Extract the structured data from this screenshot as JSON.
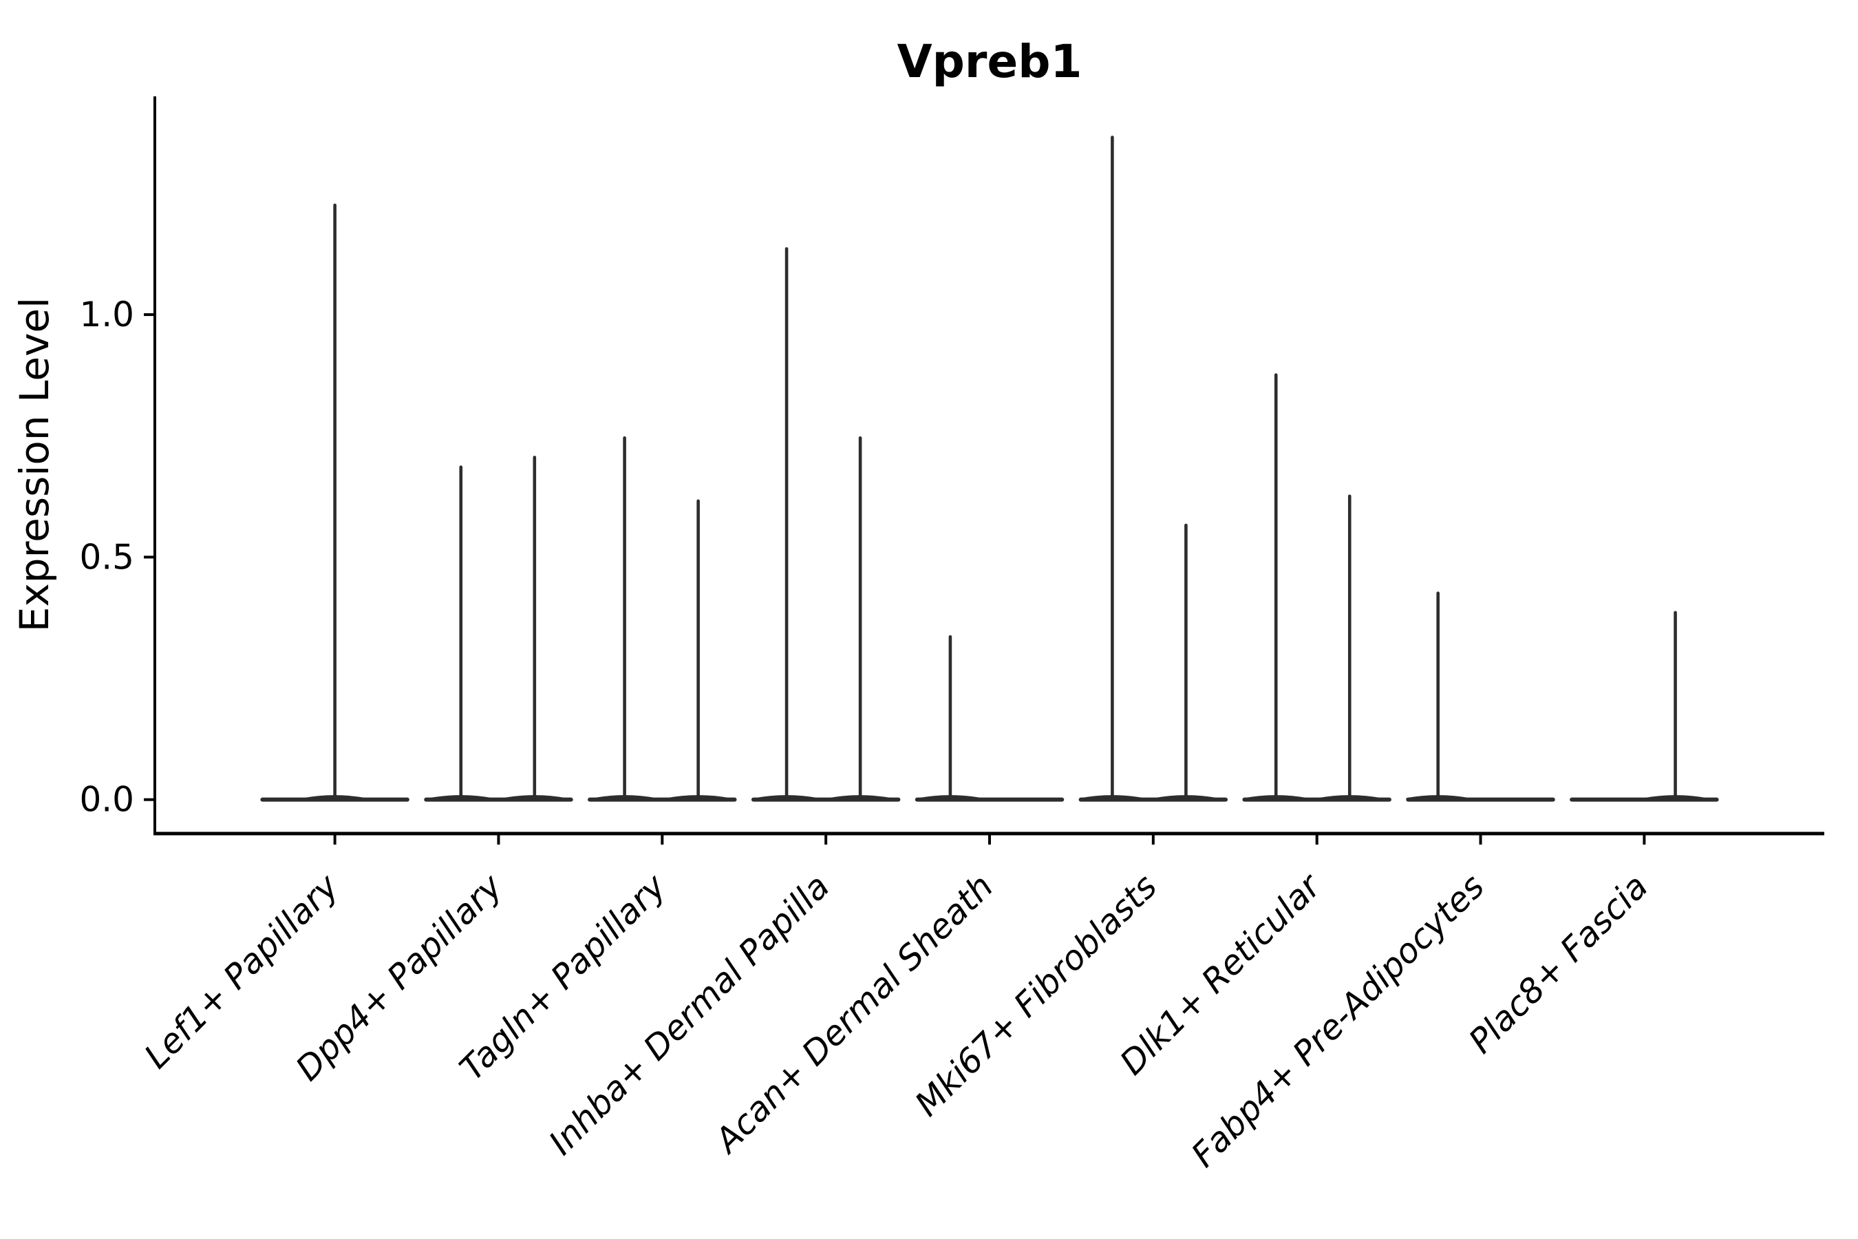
{
  "chart_data": {
    "type": "violin",
    "title": "Vpreb1",
    "ylabel": "Expression Level",
    "xlabel": "",
    "grid": false,
    "legend_position": "none",
    "background": "#ffffff",
    "axis_color": "#000000",
    "ink_color": "#2d2d2d",
    "ylim": [
      -0.07,
      1.45
    ],
    "yticks": [
      {
        "label": "0.0",
        "value": 0.0
      },
      {
        "label": "0.5",
        "value": 0.5
      },
      {
        "label": "1.0",
        "value": 1.0
      }
    ],
    "categories": [
      "Lef1+ Papillary",
      "Dpp4+ Papillary",
      "Tagln+ Papillary",
      "Inhba+ Dermal Papilla",
      "Acan+ Dermal Sheath",
      "Mki67+ Fibroblasts",
      "Dlk1+ Reticular",
      "Fabp4+ Pre-Adipocytes",
      "Plac8+ Fascia"
    ],
    "violins": [
      {
        "category": "Lef1+ Papillary",
        "baseline": 0.0,
        "spikes": [
          {
            "pos": 0.0,
            "max": 1.23
          }
        ]
      },
      {
        "category": "Dpp4+ Papillary",
        "baseline": 0.0,
        "spikes": [
          {
            "pos": -0.23,
            "max": 0.69
          },
          {
            "pos": 0.22,
            "max": 0.71
          }
        ]
      },
      {
        "category": "Tagln+ Papillary",
        "baseline": 0.0,
        "spikes": [
          {
            "pos": -0.23,
            "max": 0.75
          },
          {
            "pos": 0.22,
            "max": 0.62
          }
        ]
      },
      {
        "category": "Inhba+ Dermal Papilla",
        "baseline": 0.0,
        "spikes": [
          {
            "pos": -0.24,
            "max": 1.14
          },
          {
            "pos": 0.21,
            "max": 0.75
          }
        ]
      },
      {
        "category": "Acan+ Dermal Sheath",
        "baseline": 0.0,
        "spikes": [
          {
            "pos": -0.24,
            "max": 0.34
          }
        ]
      },
      {
        "category": "Mki67+ Fibroblasts",
        "baseline": 0.0,
        "spikes": [
          {
            "pos": -0.25,
            "max": 1.37
          },
          {
            "pos": 0.2,
            "max": 0.57
          }
        ]
      },
      {
        "category": "Dlk1+ Reticular",
        "baseline": 0.0,
        "spikes": [
          {
            "pos": -0.25,
            "max": 0.88
          },
          {
            "pos": 0.2,
            "max": 0.63
          }
        ]
      },
      {
        "category": "Fabp4+ Pre-Adipocytes",
        "baseline": 0.0,
        "spikes": [
          {
            "pos": -0.26,
            "max": 0.43
          }
        ]
      },
      {
        "category": "Plac8+ Fascia",
        "baseline": 0.0,
        "spikes": [
          {
            "pos": 0.19,
            "max": 0.39
          }
        ]
      }
    ],
    "violin_width_fraction": 0.91
  }
}
